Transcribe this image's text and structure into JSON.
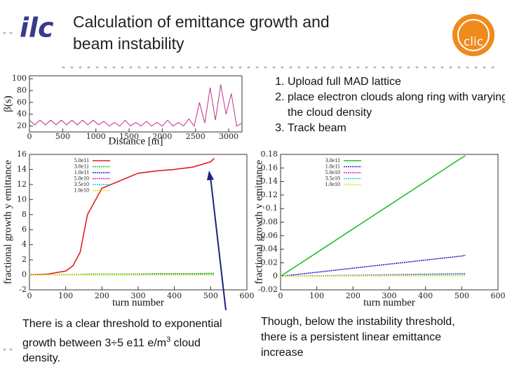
{
  "title_lines": [
    "Calculation of emittance growth and",
    "beam instability"
  ],
  "logos": {
    "left": "ilc",
    "right": "clic"
  },
  "steps": [
    "Upload full MAD lattice",
    "place electron clouds along ring with varying the cloud density",
    "Track beam"
  ],
  "captions": {
    "left": {
      "line1": "There is a clear threshold to exponential",
      "line2": "growth between 3÷5 e11 e/m",
      "sup": "3",
      "line2_end": " cloud",
      "line3": "density."
    },
    "right": [
      "Though, below the instability threshold,",
      "there is a persistent linear emittance",
      "increase"
    ]
  },
  "charts": [
    {
      "type": "line",
      "xlabel": "Distance [m]",
      "ylabel": "β(s)",
      "x": [
        0,
        80,
        160,
        240,
        320,
        400,
        480,
        560,
        640,
        720,
        800,
        880,
        960,
        1040,
        1120,
        1200,
        1280,
        1360,
        1440,
        1520,
        1600,
        1680,
        1760,
        1840,
        1920,
        2000,
        2080,
        2160,
        2240,
        2320,
        2400,
        2480,
        2560,
        2640,
        2720,
        2800,
        2880,
        2960,
        3040,
        3120,
        3200
      ],
      "series": [
        {
          "name": null,
          "color": "#c0308a",
          "values": [
            30,
            22,
            30,
            22,
            30,
            22,
            30,
            22,
            30,
            22,
            30,
            22,
            30,
            22,
            28,
            20,
            26,
            20,
            30,
            20,
            26,
            20,
            28,
            20,
            26,
            20,
            30,
            20,
            26,
            20,
            32,
            20,
            60,
            25,
            85,
            30,
            90,
            40,
            75,
            20,
            25
          ]
        }
      ],
      "xlim": [
        0,
        3200
      ],
      "ylim": [
        10,
        105
      ],
      "xticks": [
        0,
        500,
        1000,
        1500,
        2000,
        2500,
        3000
      ],
      "yticks": [
        20,
        40,
        60,
        80,
        100
      ],
      "legend": false
    },
    {
      "type": "line",
      "xlabel": "turn number",
      "ylabel": "fractional growth y emittance",
      "x": [
        0,
        50,
        100,
        120,
        140,
        160,
        200,
        250,
        300,
        350,
        400,
        450,
        500,
        510
      ],
      "series": [
        {
          "name": "5.0e11",
          "color": "#e02020",
          "values": [
            0,
            0.1,
            0.5,
            1.2,
            3,
            8,
            11.5,
            12.5,
            13.5,
            13.8,
            14,
            14.3,
            15,
            15.5
          ]
        },
        {
          "name": "3.0e11",
          "color": "#22c022",
          "values": [
            0,
            0,
            0.05,
            0.05,
            0.05,
            0.1,
            0.1,
            0.1,
            0.1,
            0.15,
            0.15,
            0.15,
            0.2,
            0.2
          ]
        },
        {
          "name": "1.0e11",
          "color": "#2020c0",
          "values": [
            0,
            0,
            0,
            0,
            0,
            0,
            0,
            0,
            0.05,
            0.05,
            0.05,
            0.05,
            0.05,
            0.05
          ]
        },
        {
          "name": "5.0e10",
          "color": "#d020d0",
          "values": [
            0,
            0,
            0,
            0,
            0,
            0,
            0,
            0,
            0,
            0,
            0,
            0,
            0,
            0
          ]
        },
        {
          "name": "3.5e10",
          "color": "#20c8d0",
          "values": [
            0,
            0,
            0,
            0,
            0,
            0,
            0,
            0,
            0,
            0,
            0,
            0,
            0,
            0
          ]
        },
        {
          "name": "1.0e10",
          "color": "#e0e020",
          "values": [
            0,
            0,
            0,
            0,
            0,
            0,
            0,
            0,
            0,
            0,
            0,
            0,
            0,
            0
          ]
        }
      ],
      "xlim": [
        0,
        600
      ],
      "ylim": [
        -2,
        16
      ],
      "xticks": [
        0,
        100,
        200,
        300,
        400,
        500,
        600
      ],
      "yticks": [
        -2,
        0,
        2,
        4,
        6,
        8,
        10,
        12,
        14,
        16
      ],
      "legend": "upper left"
    },
    {
      "type": "line",
      "xlabel": "turn number",
      "ylabel": "fractional growth y emittance",
      "x": [
        0,
        100,
        200,
        300,
        400,
        500,
        510
      ],
      "series": [
        {
          "name": "3.0e11",
          "color": "#22c022",
          "values": [
            0,
            0.035,
            0.07,
            0.105,
            0.14,
            0.175,
            0.178
          ]
        },
        {
          "name": "1.0e11",
          "color": "#2020c0",
          "values": [
            0,
            0.006,
            0.012,
            0.018,
            0.024,
            0.03,
            0.031
          ]
        },
        {
          "name": "5.0e10",
          "color": "#d020d0",
          "values": [
            0,
            0.0008,
            0.0016,
            0.0024,
            0.0032,
            0.004,
            0.004
          ]
        },
        {
          "name": "3.5e10",
          "color": "#20c8d0",
          "values": [
            0,
            0.0006,
            0.0012,
            0.0018,
            0.0024,
            0.003,
            0.003
          ]
        },
        {
          "name": "1.0e10",
          "color": "#e0e020",
          "values": [
            0,
            0.0002,
            0.0004,
            0.0006,
            0.0008,
            0.001,
            0.001
          ]
        }
      ],
      "xlim": [
        0,
        600
      ],
      "ylim": [
        -0.02,
        0.18
      ],
      "xticks": [
        0,
        100,
        200,
        300,
        400,
        500,
        600
      ],
      "yticks": [
        -0.02,
        0,
        0.02,
        0.04,
        0.06,
        0.08,
        0.1,
        0.12,
        0.14,
        0.16,
        0.18
      ],
      "legend": "upper left"
    }
  ]
}
